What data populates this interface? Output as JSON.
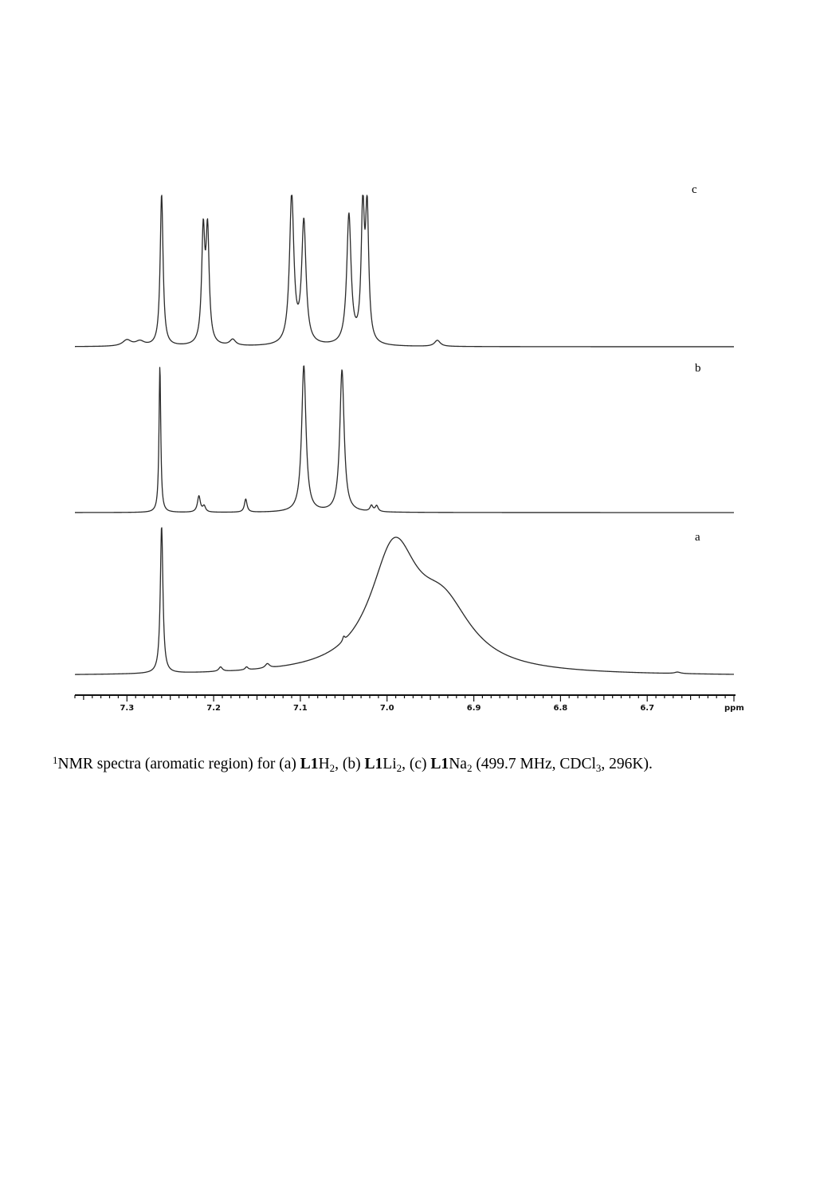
{
  "chart_data": {
    "type": "line",
    "xlabel": "ppm",
    "x_axis_reversed": true,
    "xlim": [
      7.36,
      6.6
    ],
    "x_ticks": [
      "7.3",
      "7.2",
      "7.1",
      "7.0",
      "6.9",
      "6.8",
      "6.7"
    ],
    "x_tick_values": [
      7.3,
      7.2,
      7.1,
      7.0,
      6.9,
      6.8,
      6.7
    ],
    "series": [
      {
        "name": "c",
        "peaks": [
          {
            "ppm": 7.3,
            "height": 0.04,
            "width": 0.006
          },
          {
            "ppm": 7.285,
            "height": 0.03,
            "width": 0.006
          },
          {
            "ppm": 7.26,
            "height": 1.0,
            "width": 0.002,
            "truncated": true
          },
          {
            "ppm": 7.212,
            "height": 0.72,
            "width": 0.0022
          },
          {
            "ppm": 7.207,
            "height": 0.72,
            "width": 0.0022
          },
          {
            "ppm": 7.178,
            "height": 0.04,
            "width": 0.004
          },
          {
            "ppm": 7.11,
            "height": 0.98,
            "width": 0.003
          },
          {
            "ppm": 7.096,
            "height": 0.8,
            "width": 0.003
          },
          {
            "ppm": 7.044,
            "height": 0.85,
            "width": 0.003
          },
          {
            "ppm": 7.028,
            "height": 0.86,
            "width": 0.0022
          },
          {
            "ppm": 7.023,
            "height": 0.85,
            "width": 0.0022
          },
          {
            "ppm": 6.942,
            "height": 0.04,
            "width": 0.004
          }
        ]
      },
      {
        "name": "b",
        "peaks": [
          {
            "ppm": 7.262,
            "height": 1.0,
            "width": 0.0012
          },
          {
            "ppm": 7.217,
            "height": 0.11,
            "width": 0.002
          },
          {
            "ppm": 7.211,
            "height": 0.04,
            "width": 0.002
          },
          {
            "ppm": 7.163,
            "height": 0.09,
            "width": 0.0018
          },
          {
            "ppm": 7.096,
            "height": 1.0,
            "width": 0.003
          },
          {
            "ppm": 7.052,
            "height": 0.97,
            "width": 0.003
          },
          {
            "ppm": 7.018,
            "height": 0.04,
            "width": 0.002
          },
          {
            "ppm": 7.012,
            "height": 0.04,
            "width": 0.002
          }
        ]
      },
      {
        "name": "a",
        "peaks": [
          {
            "ppm": 7.26,
            "height": 1.0,
            "width": 0.0018,
            "truncated": true
          },
          {
            "ppm": 7.192,
            "height": 0.03,
            "width": 0.0025
          },
          {
            "ppm": 7.162,
            "height": 0.02,
            "width": 0.002
          },
          {
            "ppm": 7.138,
            "height": 0.03,
            "width": 0.003
          },
          {
            "ppm": 7.05,
            "height": 0.03,
            "width": 0.0015
          },
          {
            "ppm": 6.992,
            "height": 0.8,
            "width": 0.033
          },
          {
            "ppm": 6.935,
            "height": 0.4,
            "width": 0.04
          },
          {
            "ppm": 6.665,
            "height": 0.01,
            "width": 0.004
          }
        ]
      }
    ]
  },
  "caption": {
    "sup": "1",
    "part1": "NMR spectra (aromatic region) for (a) ",
    "compound": "L1",
    "formula_a": "H",
    "sub_a": "2",
    "sep_b": ", (b) ",
    "formula_b": "Li",
    "sub_b": "2",
    "sep_c": ", (c) ",
    "formula_c": "Na",
    "sub_c": "2",
    "conditions": " (499.7 MHz, CDCl",
    "sub_cdcl": "3",
    "tail": ", 296K)."
  }
}
